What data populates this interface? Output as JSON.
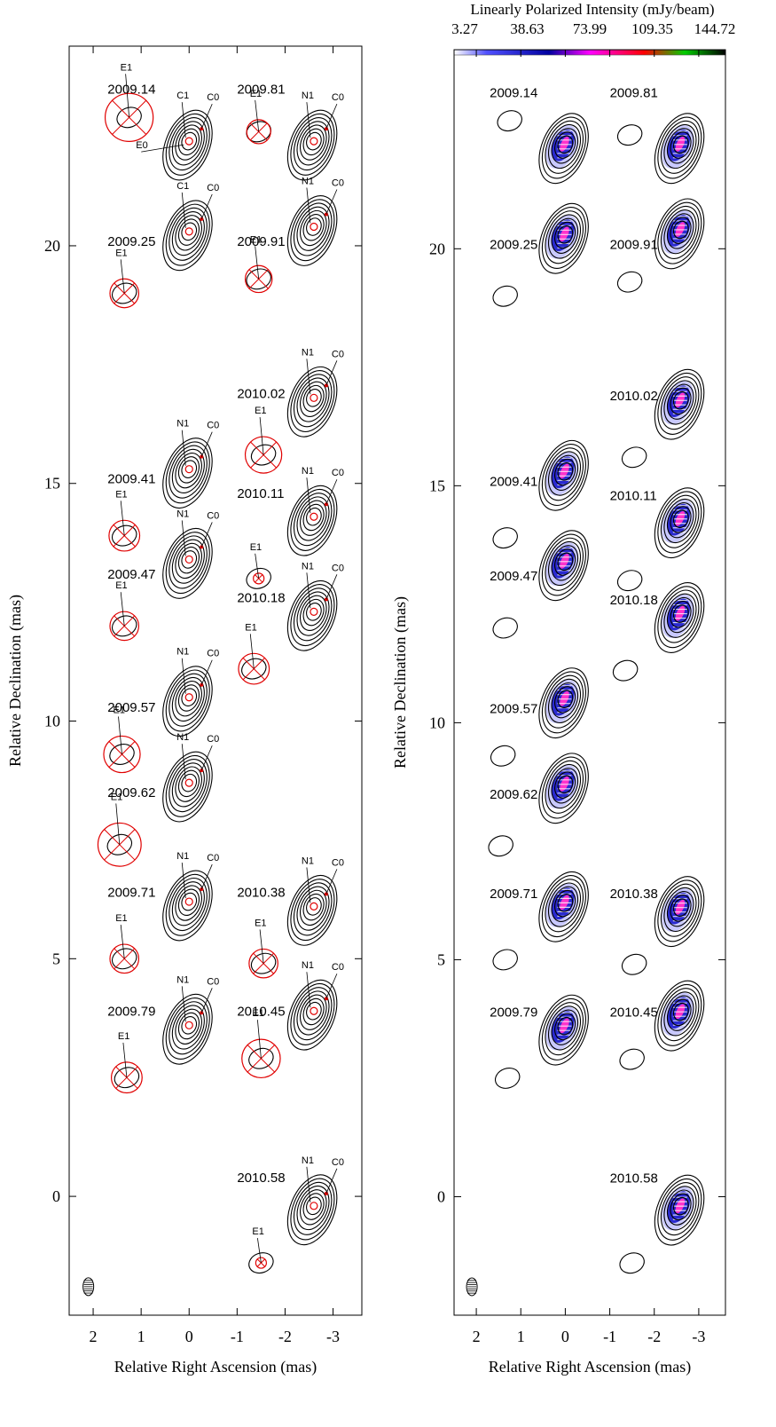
{
  "figure": {
    "panels": [
      "left",
      "right"
    ]
  },
  "colorbar": {
    "title": "Linearly Polarized Intensity (mJy/beam)",
    "ticks": [
      "3.27",
      "38.63",
      "73.99",
      "109.35",
      "144.72"
    ],
    "range": [
      3.27,
      144.72
    ],
    "colors": [
      "#ffffff",
      "#3a3aff",
      "#0000a0",
      "#ff00ff",
      "#ff0000",
      "#00cc00",
      "#000000"
    ]
  },
  "chart_data": {
    "type": "scatter",
    "xlabel": "Relative Right Ascension (mas)",
    "ylabel": "Relative Declination (mas)",
    "xlim": [
      2.5,
      -3.6
    ],
    "ylim": [
      -2.5,
      24.2
    ],
    "x_reversed": true,
    "xticks": [
      2,
      1,
      0,
      -1,
      -2,
      -3
    ],
    "xtick_labels": [
      "2",
      "1",
      "0",
      "-1",
      "-2",
      "-3"
    ],
    "yticks": [
      0,
      5,
      10,
      15,
      20
    ],
    "ytick_labels": [
      "0",
      "5",
      "10",
      "15",
      "20"
    ],
    "epochs": [
      {
        "label": "2009.14",
        "core_x": 0,
        "core_y": 22.2,
        "label_x": 1.7,
        "label_y": 23.2,
        "ext_x": 1.25,
        "ext_y": 22.7,
        "ext_r": 0.5,
        "knots": [
          "C1",
          "C0",
          "E0",
          "E1"
        ]
      },
      {
        "label": "2009.25",
        "core_x": 0,
        "core_y": 20.3,
        "label_x": 1.7,
        "label_y": 20.0,
        "ext_x": 1.35,
        "ext_y": 19.0,
        "ext_r": 0.3,
        "knots": [
          "C1",
          "C0",
          "E1"
        ]
      },
      {
        "label": "2009.41",
        "core_x": 0,
        "core_y": 15.3,
        "label_x": 1.7,
        "label_y": 15.0,
        "ext_x": 1.35,
        "ext_y": 13.9,
        "ext_r": 0.32,
        "knots": [
          "N1",
          "C0",
          "E1"
        ]
      },
      {
        "label": "2009.47",
        "core_x": 0,
        "core_y": 13.4,
        "label_x": 1.7,
        "label_y": 13.0,
        "ext_x": 1.35,
        "ext_y": 12.0,
        "ext_r": 0.3,
        "knots": [
          "N1",
          "C0",
          "E1"
        ]
      },
      {
        "label": "2009.57",
        "core_x": 0,
        "core_y": 10.5,
        "label_x": 1.7,
        "label_y": 10.2,
        "ext_x": 1.4,
        "ext_y": 9.3,
        "ext_r": 0.38,
        "knots": [
          "N1",
          "C0",
          "E1"
        ]
      },
      {
        "label": "2009.62",
        "core_x": 0,
        "core_y": 8.7,
        "label_x": 1.7,
        "label_y": 8.4,
        "ext_x": 1.45,
        "ext_y": 7.4,
        "ext_r": 0.45,
        "knots": [
          "N1",
          "C0",
          "E1"
        ]
      },
      {
        "label": "2009.71",
        "core_x": 0,
        "core_y": 6.2,
        "label_x": 1.7,
        "label_y": 6.3,
        "ext_x": 1.35,
        "ext_y": 5.0,
        "ext_r": 0.3,
        "knots": [
          "N1",
          "C0",
          "E1"
        ]
      },
      {
        "label": "2009.79",
        "core_x": 0,
        "core_y": 3.6,
        "label_x": 1.7,
        "label_y": 3.8,
        "ext_x": 1.3,
        "ext_y": 2.5,
        "ext_r": 0.32,
        "knots": [
          "N1",
          "C0",
          "E1"
        ]
      },
      {
        "label": "2009.81",
        "core_x": -2.6,
        "core_y": 22.2,
        "label_x": -1.0,
        "label_y": 23.2,
        "ext_x": -1.45,
        "ext_y": 22.4,
        "ext_r": 0.25,
        "knots": [
          "N1",
          "C0",
          "E1"
        ]
      },
      {
        "label": "2009.91",
        "core_x": -2.6,
        "core_y": 20.4,
        "label_x": -1.0,
        "label_y": 20.0,
        "ext_x": -1.45,
        "ext_y": 19.3,
        "ext_r": 0.28,
        "knots": [
          "N1",
          "C0",
          "E1"
        ]
      },
      {
        "label": "2010.02",
        "core_x": -2.6,
        "core_y": 16.8,
        "label_x": -1.0,
        "label_y": 16.8,
        "ext_x": -1.55,
        "ext_y": 15.6,
        "ext_r": 0.38,
        "knots": [
          "N1",
          "C0",
          "E1"
        ]
      },
      {
        "label": "2010.11",
        "core_x": -2.6,
        "core_y": 14.3,
        "label_x": -1.0,
        "label_y": 14.7,
        "ext_x": -1.45,
        "ext_y": 13.0,
        "ext_r": 0.1,
        "knots": [
          "N1",
          "C0",
          "E1"
        ]
      },
      {
        "label": "2010.18",
        "core_x": -2.6,
        "core_y": 12.3,
        "label_x": -1.0,
        "label_y": 12.5,
        "ext_x": -1.35,
        "ext_y": 11.1,
        "ext_r": 0.32,
        "knots": [
          "N1",
          "C0",
          "E1"
        ]
      },
      {
        "label": "2010.38",
        "core_x": -2.6,
        "core_y": 6.1,
        "label_x": -1.0,
        "label_y": 6.3,
        "ext_x": -1.55,
        "ext_y": 4.9,
        "ext_r": 0.3,
        "knots": [
          "N1",
          "C0",
          "E1"
        ]
      },
      {
        "label": "2010.45",
        "core_x": -2.6,
        "core_y": 3.9,
        "label_x": -1.0,
        "label_y": 3.8,
        "ext_x": -1.5,
        "ext_y": 2.9,
        "ext_r": 0.4,
        "knots": [
          "N1",
          "C0",
          "E1"
        ]
      },
      {
        "label": "2010.58",
        "core_x": -2.6,
        "core_y": -0.2,
        "label_x": -1.0,
        "label_y": 0.3,
        "ext_x": -1.5,
        "ext_y": -1.4,
        "ext_r": 0.1,
        "knots": [
          "N1",
          "C0",
          "E1"
        ]
      }
    ]
  }
}
